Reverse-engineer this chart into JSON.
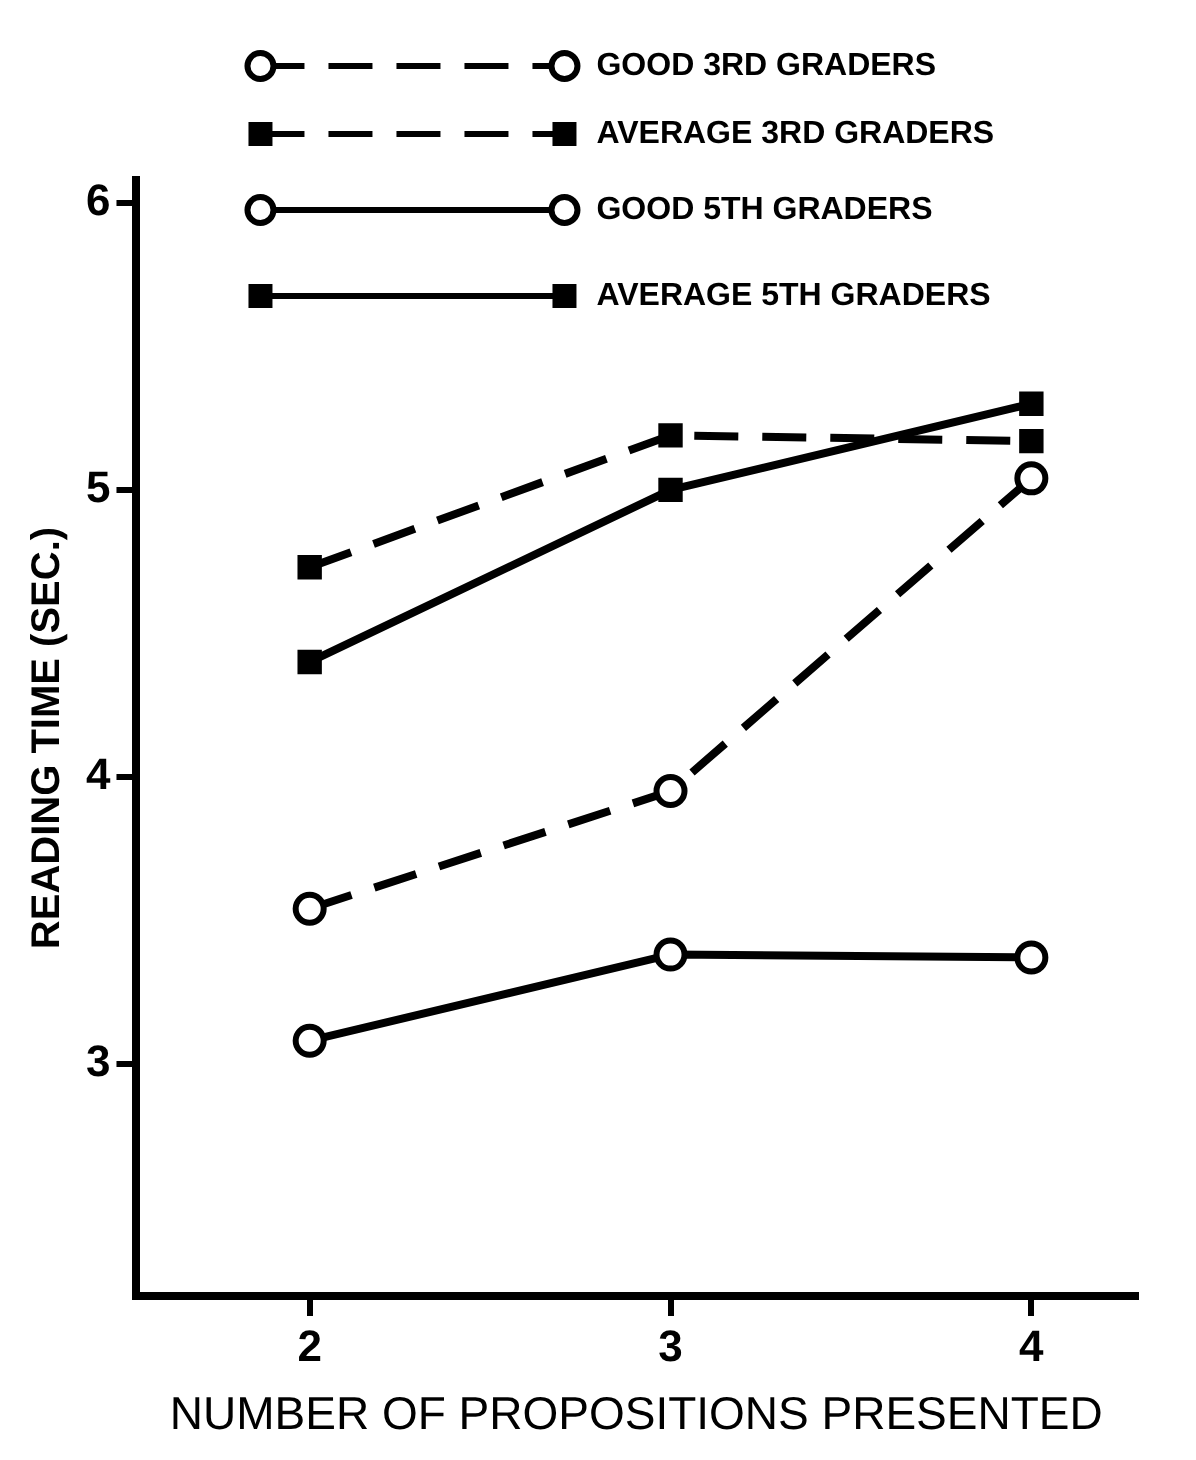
{
  "chart_data": {
    "type": "line",
    "xlabel": "NUMBER OF PROPOSITIONS PRESENTED",
    "ylabel": "READING TIME (SEC.)",
    "x": [
      2,
      3,
      4
    ],
    "series": [
      {
        "name": "GOOD 3RD GRADERS",
        "color": "#000000",
        "values": [
          3.54,
          3.95,
          5.04
        ],
        "marker": "circle",
        "line_style": "dashed"
      },
      {
        "name": "AVERAGE 3RD GRADERS",
        "color": "#000000",
        "values": [
          4.73,
          5.19,
          5.17
        ],
        "marker": "square",
        "line_style": "dashed"
      },
      {
        "name": "GOOD 5TH GRADERS",
        "color": "#000000",
        "values": [
          3.08,
          3.38,
          3.37
        ],
        "marker": "circle",
        "line_style": "solid"
      },
      {
        "name": "AVERAGE 5TH GRADERS",
        "color": "#000000",
        "values": [
          4.4,
          5.0,
          5.3
        ],
        "marker": "square",
        "line_style": "solid"
      }
    ],
    "xlim": [
      1.52,
      4.29
    ],
    "xticks": [
      2,
      3,
      4
    ],
    "ylim": [
      2.19,
      6.08
    ],
    "yticks": [
      3,
      4,
      5,
      6
    ],
    "grid": false,
    "legend": "top right"
  }
}
